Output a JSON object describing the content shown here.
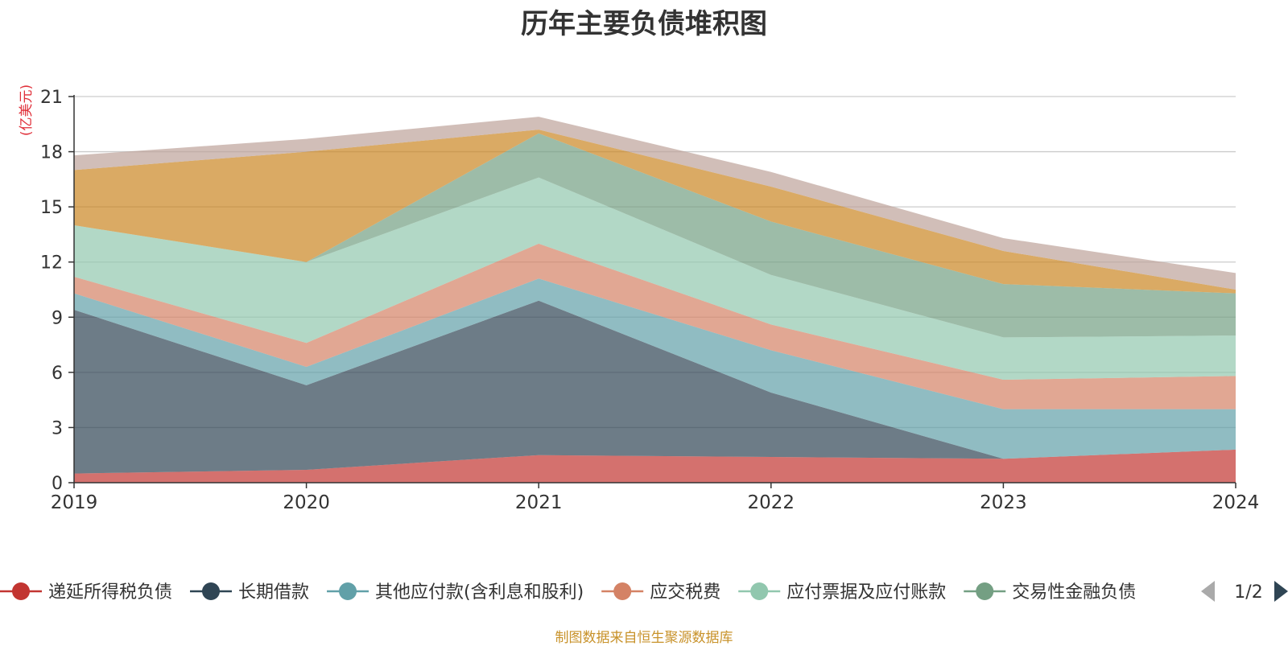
{
  "chart_data": {
    "type": "area",
    "stacked": true,
    "title": "历年主要负债堆积图",
    "ylabel": "(亿美元)",
    "ylabel_color": "#e0303a",
    "x": [
      "2019",
      "2020",
      "2021",
      "2022",
      "2023",
      "2024"
    ],
    "ylim": [
      0,
      21
    ],
    "yticks": [
      "0",
      "3",
      "6",
      "9",
      "12",
      "15",
      "18",
      "21"
    ],
    "grid": true,
    "series": [
      {
        "name": "递延所得税负债",
        "color": "#c23531",
        "values": [
          0.5,
          0.7,
          1.5,
          1.4,
          1.3,
          1.8
        ]
      },
      {
        "name": "长期借款",
        "color": "#2f4554",
        "values": [
          8.9,
          4.6,
          8.4,
          3.5,
          0.0,
          0.0
        ]
      },
      {
        "name": "其他应付款(含利息和股利)",
        "color": "#61a0a8",
        "values": [
          0.9,
          1.0,
          1.2,
          2.3,
          2.7,
          2.2
        ]
      },
      {
        "name": "应交税费",
        "color": "#d48265",
        "values": [
          0.9,
          1.3,
          1.9,
          1.4,
          1.6,
          1.8
        ]
      },
      {
        "name": "应付票据及应付账款",
        "color": "#91c7ae",
        "values": [
          2.8,
          4.4,
          3.6,
          2.7,
          2.3,
          2.2
        ]
      },
      {
        "name": "交易性金融负债",
        "color": "#749f83",
        "values": [
          0.0,
          0.0,
          2.4,
          2.9,
          2.9,
          2.3
        ]
      },
      {
        "name": "",
        "color": "#ca8622",
        "values": [
          3.0,
          6.0,
          0.2,
          1.9,
          1.8,
          0.2
        ]
      },
      {
        "name": "",
        "color": "#bda29a",
        "values": [
          0.8,
          0.7,
          0.7,
          0.8,
          0.7,
          0.9
        ]
      }
    ],
    "legend_position": "bottom",
    "legend_page": "1/2"
  },
  "source": "制图数据来自恒生聚源数据库"
}
